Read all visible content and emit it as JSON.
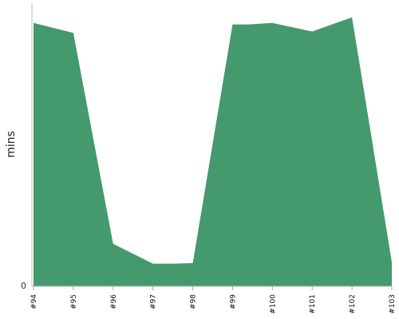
{
  "chart_data": {
    "type": "area",
    "title": "",
    "xlabel": "",
    "ylabel": "mins",
    "categories": [
      "#94",
      "#95",
      "#96",
      "#97",
      "#98",
      "#99",
      "#100",
      "#101",
      "#102",
      "#103"
    ],
    "series": [
      {
        "x": [
          0,
          1,
          2,
          3,
          3.5,
          4,
          5,
          5.4,
          6,
          7,
          8,
          9
        ],
        "values": [
          93,
          89.5,
          15,
          8,
          8,
          8.2,
          92.5,
          92.5,
          93,
          90,
          95,
          8.5
        ]
      }
    ],
    "ylim": [
      0,
      100
    ],
    "y_ticks": [
      0
    ],
    "y_tick_labels": [
      "0"
    ],
    "grid": false,
    "legend": "none",
    "color": "#449a6c"
  }
}
